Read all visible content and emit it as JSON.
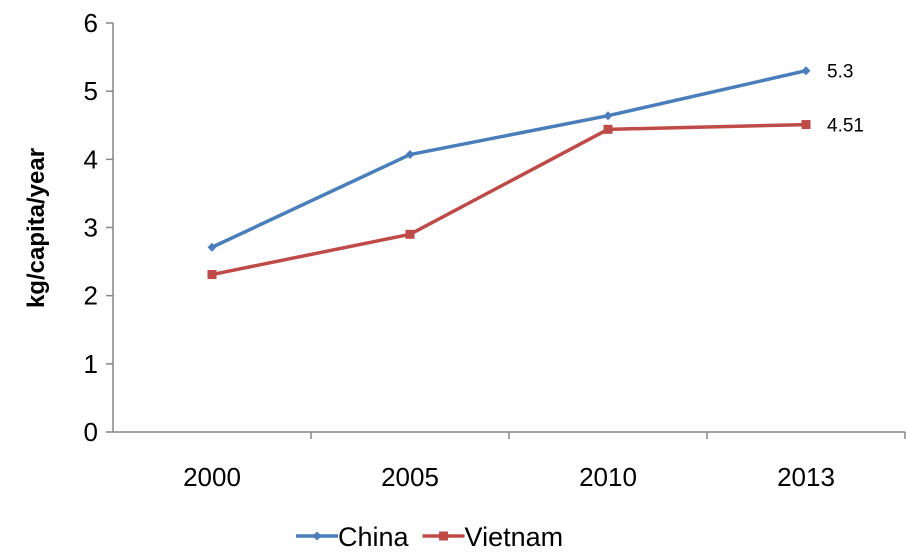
{
  "chart_data": {
    "type": "line",
    "categories": [
      "2000",
      "2005",
      "2010",
      "2013"
    ],
    "series": [
      {
        "name": "China",
        "values": [
          2.71,
          4.07,
          4.64,
          5.3
        ],
        "color": "#4a7ebb",
        "marker": "diamond"
      },
      {
        "name": "Vietnam",
        "values": [
          2.31,
          2.9,
          4.44,
          4.51
        ],
        "color": "#be4b48",
        "marker": "square"
      }
    ],
    "data_labels": [
      {
        "series": "China",
        "category": "2013",
        "text": "5.3"
      },
      {
        "series": "Vietnam",
        "category": "2013",
        "text": "4.51"
      }
    ],
    "title": "",
    "xlabel": "",
    "ylabel": "kg/capita/year",
    "ylim": [
      0,
      6
    ],
    "yticks": [
      "0",
      "1",
      "2",
      "3",
      "4",
      "5",
      "6"
    ],
    "grid": false,
    "legend_position": "bottom"
  }
}
